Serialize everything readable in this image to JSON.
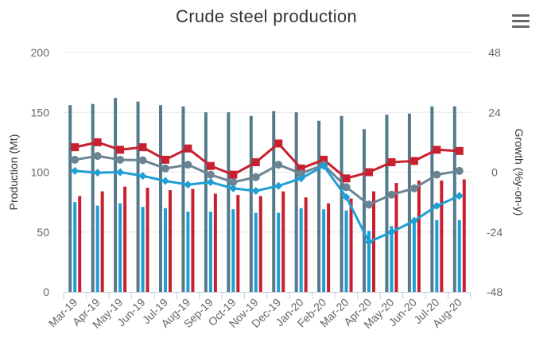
{
  "title": "Crude steel production",
  "menu_icon": "hamburger-menu-icon",
  "chart_data": {
    "type": "bar",
    "title": "Crude steel production",
    "categories": [
      "Mar-19",
      "Apr-19",
      "May-19",
      "Jun-19",
      "Jul-19",
      "Aug-19",
      "Sep-19",
      "Oct-19",
      "Nov-19",
      "Dec-19",
      "Jan-20",
      "Feb-20",
      "Mar-20",
      "Apr-20",
      "May-20",
      "Jun-20",
      "Jul-20",
      "Aug-20"
    ],
    "y_left": {
      "label": "Production (Mt)",
      "range": [
        0,
        200
      ],
      "ticks": [
        "0",
        "50",
        "100",
        "150",
        "200"
      ]
    },
    "y_right": {
      "label": "Growth (%y-on-y)",
      "range": [
        -48,
        48
      ],
      "ticks": [
        "-48",
        "-24",
        "0",
        "24",
        "48"
      ]
    },
    "grid": true,
    "bars": [
      {
        "color": "#547A8C",
        "values": [
          156,
          157,
          162,
          159,
          156,
          155,
          150,
          150,
          147,
          151,
          150,
          143,
          147,
          136,
          148,
          149,
          155,
          155
        ]
      },
      {
        "color": "#1E9FD6",
        "values": [
          75,
          72,
          74,
          71,
          70,
          67,
          67,
          69,
          66,
          66,
          70,
          69,
          68,
          51,
          55,
          58,
          60,
          60
        ]
      },
      {
        "color": "#C8202E",
        "values": [
          80,
          84,
          88,
          87,
          85,
          86,
          82,
          81,
          80,
          84,
          79,
          74,
          78,
          84,
          91,
          93,
          93,
          94
        ]
      }
    ],
    "lines": [
      {
        "color": "#C8202E",
        "marker": "square",
        "values": [
          10,
          12,
          9,
          10,
          5,
          9.5,
          2.5,
          -1,
          4,
          11.5,
          1.5,
          5,
          -2.5,
          0,
          4,
          4.5,
          9,
          8.5
        ]
      },
      {
        "color": "#6B8494",
        "marker": "circle",
        "values": [
          5,
          6.5,
          5,
          4.8,
          1.5,
          3,
          -1,
          -4,
          -2,
          3,
          -0.5,
          3,
          -6,
          -13,
          -9,
          -6.5,
          -1,
          0.5
        ]
      },
      {
        "color": "#1E9FD6",
        "marker": "diamond",
        "values": [
          0.5,
          -0.2,
          0,
          -1.5,
          -3.5,
          -5,
          -4,
          -6.5,
          -7.5,
          -5.5,
          -2.5,
          2.5,
          -10,
          -28,
          -24,
          -19.5,
          -13.5,
          -9.5
        ]
      }
    ]
  }
}
